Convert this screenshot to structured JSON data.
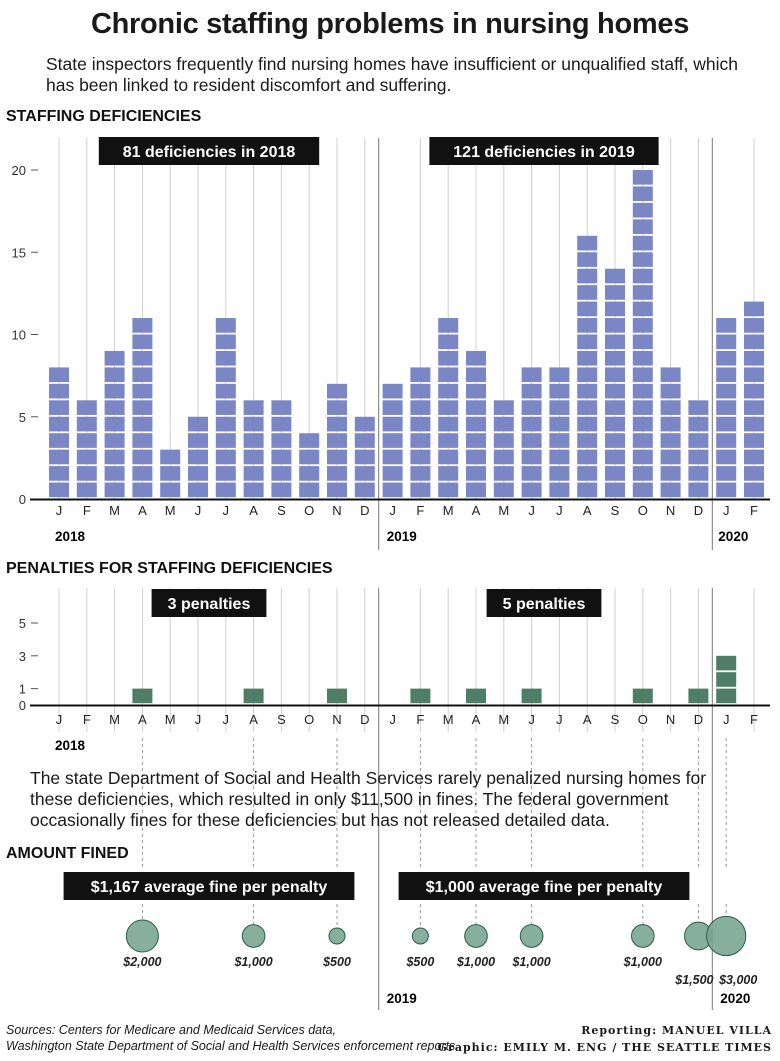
{
  "header": {
    "title": "Chronic staffing problems in nursing homes",
    "subtitle": "State inspectors frequently find nursing homes have insufficient or unqualified staff, which has been linked to resident discomfort and suffering."
  },
  "note": "The state Department of Social and Health Services rarely penalized nursing homes for these deficiencies, which resulted in only $11,500 in fines. The federal government occasionally fines for these deficiencies but has not released detailed data.",
  "footer": {
    "sources_line1": "Sources: Centers for Medicare and Medicaid Services data,",
    "sources_line2": "Washington State Department of Social and Health Services enforcement reports",
    "credit_line1": "Reporting: MANUEL VILLA",
    "credit_line2": "Graphic: EMILY M. ENG / THE SEATTLE TIMES"
  },
  "colors": {
    "deficiency_bar": "#7b87c4",
    "penalty_bar": "#4e7f66",
    "fine_bubble": "#7aa692",
    "bubble_stroke": "#2e5a46",
    "label_box": "#111111",
    "grid": "#d0d0d0",
    "year_divider": "#777777"
  },
  "months": [
    "J",
    "F",
    "M",
    "A",
    "M",
    "J",
    "J",
    "A",
    "S",
    "O",
    "N",
    "D",
    "J",
    "F",
    "M",
    "A",
    "M",
    "J",
    "J",
    "A",
    "S",
    "O",
    "N",
    "D",
    "J",
    "F"
  ],
  "years": [
    "2018",
    "2019",
    "2020"
  ],
  "chart_data": [
    {
      "type": "bar",
      "title": "STAFFING DEFICIENCIES",
      "x": [
        "2018-01",
        "2018-02",
        "2018-03",
        "2018-04",
        "2018-05",
        "2018-06",
        "2018-07",
        "2018-08",
        "2018-09",
        "2018-10",
        "2018-11",
        "2018-12",
        "2019-01",
        "2019-02",
        "2019-03",
        "2019-04",
        "2019-05",
        "2019-06",
        "2019-07",
        "2019-08",
        "2019-09",
        "2019-10",
        "2019-11",
        "2019-12",
        "2020-01",
        "2020-02"
      ],
      "values": [
        8,
        6,
        9,
        11,
        3,
        5,
        11,
        6,
        6,
        4,
        7,
        5,
        7,
        8,
        11,
        9,
        6,
        8,
        8,
        16,
        14,
        20,
        8,
        6,
        11,
        12
      ],
      "y_ticks": [
        "0",
        "5",
        "10",
        "15",
        "20"
      ],
      "ylim": [
        0,
        22
      ],
      "annotations": {
        "label_2018": "81 deficiencies in 2018",
        "label_2019": "121 deficiencies in 2019"
      }
    },
    {
      "type": "bar",
      "title": "PENALTIES FOR STAFFING DEFICIENCIES",
      "x": [
        "2018-01",
        "2018-02",
        "2018-03",
        "2018-04",
        "2018-05",
        "2018-06",
        "2018-07",
        "2018-08",
        "2018-09",
        "2018-10",
        "2018-11",
        "2018-12",
        "2019-01",
        "2019-02",
        "2019-03",
        "2019-04",
        "2019-05",
        "2019-06",
        "2019-07",
        "2019-08",
        "2019-09",
        "2019-10",
        "2019-11",
        "2019-12",
        "2020-01",
        "2020-02"
      ],
      "values": [
        0,
        0,
        0,
        1,
        0,
        0,
        0,
        1,
        0,
        0,
        1,
        0,
        0,
        1,
        0,
        1,
        0,
        1,
        0,
        0,
        0,
        1,
        0,
        1,
        3,
        0
      ],
      "y_ticks": [
        "0",
        "1",
        "3",
        "5"
      ],
      "ylim": [
        0,
        6
      ],
      "annotations": {
        "label_2018": "3 penalties",
        "label_2019": "5 penalties"
      }
    },
    {
      "type": "scatter",
      "title": "AMOUNT FINED",
      "points": [
        {
          "month": "2018-04",
          "amount": 2000,
          "label": "$2,000"
        },
        {
          "month": "2018-08",
          "amount": 1000,
          "label": "$1,000"
        },
        {
          "month": "2018-11",
          "amount": 500,
          "label": "$500"
        },
        {
          "month": "2019-02",
          "amount": 500,
          "label": "$500"
        },
        {
          "month": "2019-04",
          "amount": 1000,
          "label": "$1,000"
        },
        {
          "month": "2019-06",
          "amount": 1000,
          "label": "$1,000"
        },
        {
          "month": "2019-10",
          "amount": 1000,
          "label": "$1,000"
        },
        {
          "month": "2019-12",
          "amount": 1500,
          "label": "$1,500"
        },
        {
          "month": "2020-01",
          "amount": 3000,
          "label": "$3,000"
        }
      ],
      "annotations": {
        "label_2018": "$1,167 average fine per penalty",
        "label_2019": "$1,000 average fine per penalty"
      }
    }
  ]
}
